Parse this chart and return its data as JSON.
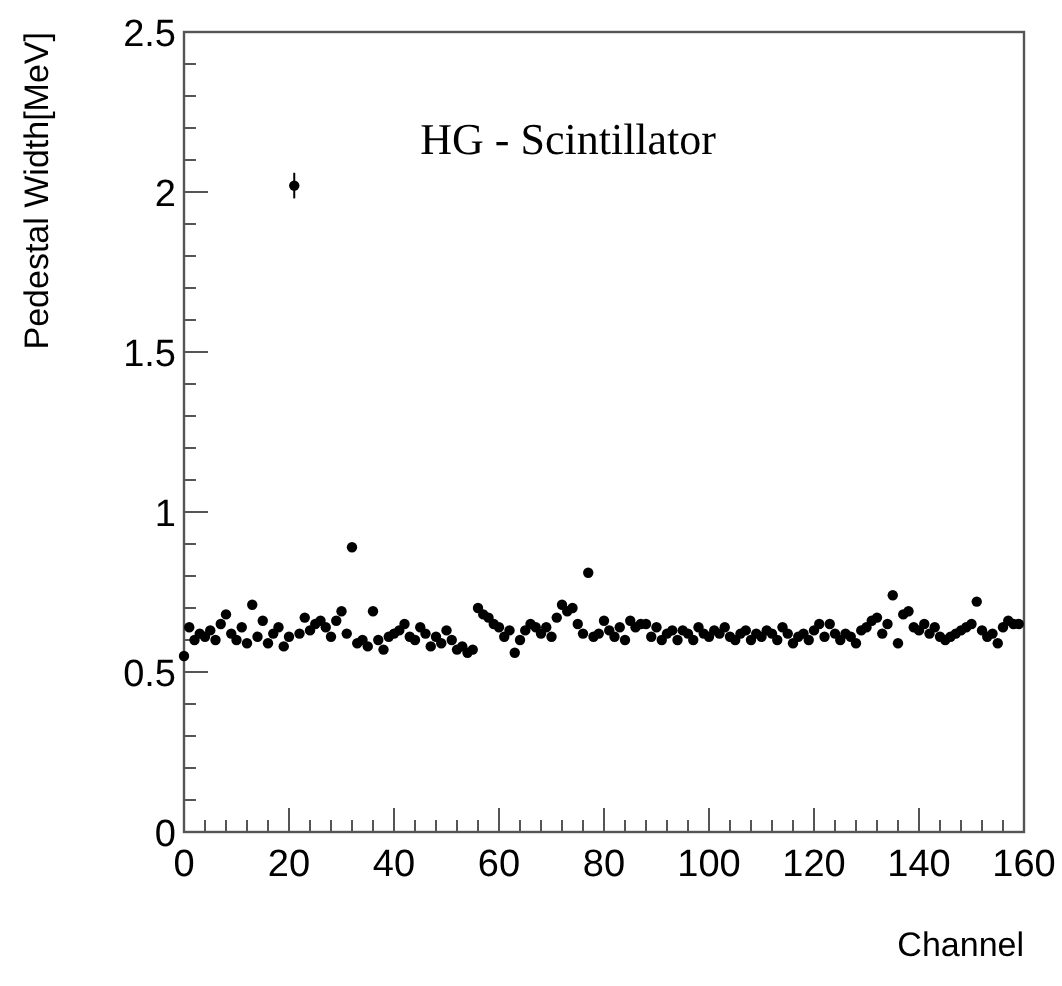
{
  "chart_data": {
    "type": "scatter",
    "xlabel": "Channel",
    "ylabel": "Pedestal Width[MeV]",
    "annotations": [
      "HG - Scintillator"
    ],
    "xlim": [
      0,
      160
    ],
    "xticks": [
      0,
      20,
      40,
      60,
      80,
      100,
      120,
      140,
      160
    ],
    "ylim": [
      0,
      2.5
    ],
    "yticks": [
      0,
      0.5,
      1,
      1.5,
      2,
      2.5
    ],
    "grid": false,
    "marker": "circle",
    "series": [
      {
        "color": "#000000",
        "x": [
          0,
          1,
          2,
          3,
          4,
          5,
          6,
          7,
          8,
          9,
          10,
          11,
          12,
          13,
          14,
          15,
          16,
          17,
          18,
          19,
          20,
          21,
          22,
          23,
          24,
          25,
          26,
          27,
          28,
          29,
          30,
          31,
          32,
          33,
          34,
          35,
          36,
          37,
          38,
          39,
          40,
          41,
          42,
          43,
          44,
          45,
          46,
          47,
          48,
          49,
          50,
          51,
          52,
          53,
          54,
          55,
          56,
          57,
          58,
          59,
          60,
          61,
          62,
          63,
          64,
          65,
          66,
          67,
          68,
          69,
          70,
          71,
          72,
          73,
          74,
          75,
          76,
          77,
          78,
          79,
          80,
          81,
          82,
          83,
          84,
          85,
          86,
          87,
          88,
          89,
          90,
          91,
          92,
          93,
          94,
          95,
          96,
          97,
          98,
          99,
          100,
          101,
          102,
          103,
          104,
          105,
          106,
          107,
          108,
          109,
          110,
          111,
          112,
          113,
          114,
          115,
          116,
          117,
          118,
          119,
          120,
          121,
          122,
          123,
          124,
          125,
          126,
          127,
          128,
          129,
          130,
          131,
          132,
          133,
          134,
          135,
          136,
          137,
          138,
          139,
          140,
          141,
          142,
          143,
          144,
          145,
          146,
          147,
          148,
          149,
          150,
          151,
          152,
          153,
          154,
          155,
          156,
          157,
          158,
          159
        ],
        "values": [
          0.55,
          0.64,
          0.6,
          0.62,
          0.61,
          0.63,
          0.6,
          0.65,
          0.68,
          0.62,
          0.6,
          0.64,
          0.59,
          0.71,
          0.61,
          0.66,
          0.59,
          0.62,
          0.64,
          0.58,
          0.61,
          2.02,
          0.62,
          0.67,
          0.63,
          0.65,
          0.66,
          0.64,
          0.61,
          0.66,
          0.69,
          0.62,
          0.89,
          0.59,
          0.6,
          0.58,
          0.69,
          0.6,
          0.57,
          0.61,
          0.62,
          0.63,
          0.65,
          0.61,
          0.6,
          0.64,
          0.62,
          0.58,
          0.61,
          0.59,
          0.63,
          0.6,
          0.57,
          0.58,
          0.56,
          0.57,
          0.7,
          0.68,
          0.67,
          0.65,
          0.64,
          0.61,
          0.63,
          0.56,
          0.6,
          0.63,
          0.65,
          0.64,
          0.62,
          0.64,
          0.61,
          0.67,
          0.71,
          0.69,
          0.7,
          0.65,
          0.62,
          0.81,
          0.61,
          0.62,
          0.66,
          0.63,
          0.61,
          0.64,
          0.6,
          0.66,
          0.64,
          0.65,
          0.65,
          0.61,
          0.64,
          0.6,
          0.62,
          0.63,
          0.6,
          0.63,
          0.62,
          0.6,
          0.64,
          0.62,
          0.61,
          0.63,
          0.62,
          0.64,
          0.61,
          0.6,
          0.62,
          0.63,
          0.6,
          0.62,
          0.61,
          0.63,
          0.62,
          0.6,
          0.64,
          0.62,
          0.59,
          0.61,
          0.62,
          0.6,
          0.63,
          0.65,
          0.61,
          0.65,
          0.62,
          0.6,
          0.62,
          0.61,
          0.59,
          0.63,
          0.64,
          0.66,
          0.67,
          0.62,
          0.65,
          0.74,
          0.59,
          0.68,
          0.69,
          0.64,
          0.63,
          0.65,
          0.62,
          0.64,
          0.61,
          0.6,
          0.61,
          0.62,
          0.63,
          0.64,
          0.65,
          0.72,
          0.63,
          0.61,
          0.62,
          0.59,
          0.64,
          0.66,
          0.65,
          0.65
        ],
        "errors": [
          null,
          null,
          null,
          null,
          null,
          null,
          null,
          null,
          null,
          null,
          null,
          null,
          null,
          null,
          null,
          null,
          null,
          null,
          null,
          null,
          null,
          0.04,
          null,
          null,
          null,
          null,
          null,
          null,
          null,
          null,
          null,
          null,
          null,
          null,
          null,
          null,
          null,
          null,
          null,
          null,
          null,
          null,
          null,
          null,
          null,
          null,
          null,
          null,
          null,
          null,
          null,
          null,
          null,
          null,
          null,
          null,
          null,
          null,
          null,
          null,
          null,
          null,
          null,
          null,
          null,
          null,
          null,
          null,
          null,
          null,
          null,
          null,
          null,
          null,
          null,
          null,
          null,
          null,
          null,
          null,
          null,
          null,
          null,
          null,
          null,
          null,
          null,
          null,
          null,
          null,
          null,
          null,
          null,
          null,
          null,
          null,
          null,
          null,
          null,
          null,
          null,
          null,
          null,
          null,
          null,
          null,
          null,
          null,
          null,
          null,
          null,
          null,
          null,
          null,
          null,
          null,
          null,
          null,
          null,
          null,
          null,
          null,
          null,
          null,
          null,
          null,
          null,
          null,
          null,
          null,
          null,
          null,
          null,
          null,
          null,
          null,
          null,
          null,
          null,
          null,
          null,
          null,
          null,
          null,
          null,
          null,
          null,
          null,
          null,
          null,
          null,
          null,
          null,
          null,
          null,
          null,
          null,
          null,
          null,
          null
        ]
      }
    ]
  }
}
